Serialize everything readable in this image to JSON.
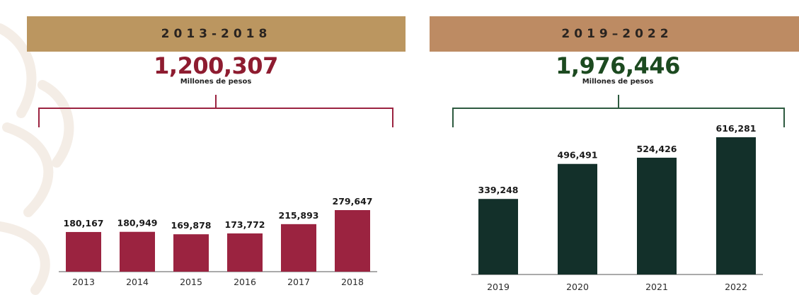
{
  "panels": [
    {
      "period": "2013-2018",
      "total": "1,200,307",
      "unit": "Millones de pesos"
    },
    {
      "period": "2019–2022",
      "total": "1,976,446",
      "unit": "Millones de pesos"
    }
  ],
  "colors": {
    "banner_left": "#bb9660",
    "banner_right": "#bd8b63",
    "total_left": "#8e1c30",
    "total_right": "#1c4a20",
    "bar_left": "#9b2340",
    "bar_right": "#13302a",
    "bracket_left": "#9b2340",
    "bracket_right": "#2d5a3f"
  },
  "chart_data": [
    {
      "type": "bar",
      "categories": [
        "2013",
        "2014",
        "2015",
        "2016",
        "2017",
        "2018"
      ],
      "values": [
        180167,
        180949,
        169878,
        173772,
        215893,
        279647
      ],
      "data_labels": [
        "180,167",
        "180,949",
        "169,878",
        "173,772",
        "215,893",
        "279,647"
      ],
      "title": "2013-2018",
      "ylabel": "",
      "xlabel": "",
      "grid": false
    },
    {
      "type": "bar",
      "categories": [
        "2019",
        "2020",
        "2021",
        "2022"
      ],
      "values": [
        339248,
        496491,
        524426,
        616281
      ],
      "data_labels": [
        "339,248",
        "496,491",
        "524,426",
        "616,281"
      ],
      "title": "2019–2022",
      "ylabel": "",
      "xlabel": "",
      "grid": false
    }
  ]
}
